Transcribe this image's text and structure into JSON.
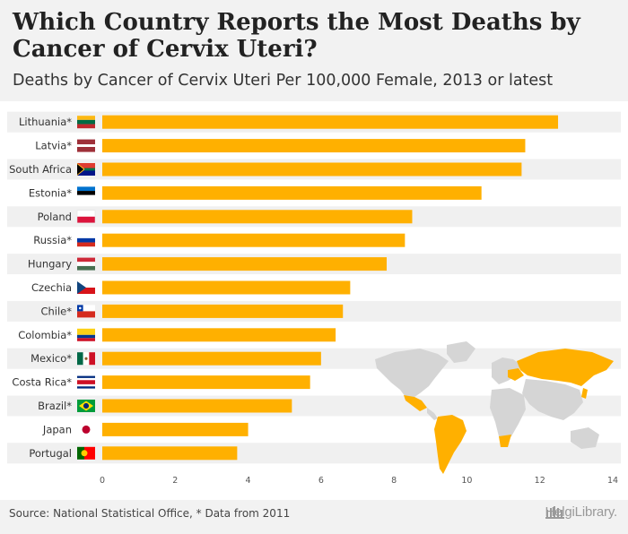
{
  "header": {
    "title": "Which Country Reports the Most Deaths by Cancer of Cervix Uteri?",
    "subtitle": "Deaths by Cancer of Cervix Uteri Per 100,000 Female, 2013 or latest"
  },
  "footer": {
    "source": "Source: National Statistical Office, * Data from 2011",
    "brand": "HelgiLibrary."
  },
  "colors": {
    "bar": "#FFB000",
    "row_band": "#f0f0f0",
    "background": "#ffffff",
    "map_land": "#d5d5d5",
    "map_highlight": "#FFB000"
  },
  "chart_data": {
    "type": "bar",
    "orientation": "horizontal",
    "title": "Which Country Reports the Most Deaths by Cancer of Cervix Uteri?",
    "subtitle": "Deaths by Cancer of Cervix Uteri Per 100,000 Female, 2013 or latest",
    "xlabel": "",
    "ylabel": "",
    "xlim": [
      0,
      14
    ],
    "x_ticks": [
      0,
      2,
      4,
      6,
      8,
      10,
      12,
      14
    ],
    "categories": [
      "Lithuania*",
      "Latvia*",
      "South Africa",
      "Estonia*",
      "Poland",
      "Russia*",
      "Hungary",
      "Czechia",
      "Chile*",
      "Colombia*",
      "Mexico*",
      "Costa Rica*",
      "Brazil*",
      "Japan",
      "Portugal"
    ],
    "flags": [
      "lithuania-flag",
      "latvia-flag",
      "south-africa-flag",
      "estonia-flag",
      "poland-flag",
      "russia-flag",
      "hungary-flag",
      "czechia-flag",
      "chile-flag",
      "colombia-flag",
      "mexico-flag",
      "costa-rica-flag",
      "brazil-flag",
      "japan-flag",
      "portugal-flag"
    ],
    "values": [
      12.5,
      11.6,
      11.5,
      10.4,
      8.5,
      8.3,
      7.8,
      6.8,
      6.6,
      6.4,
      6.0,
      5.7,
      5.2,
      4.0,
      3.7
    ],
    "grid": false,
    "legend": "none"
  }
}
